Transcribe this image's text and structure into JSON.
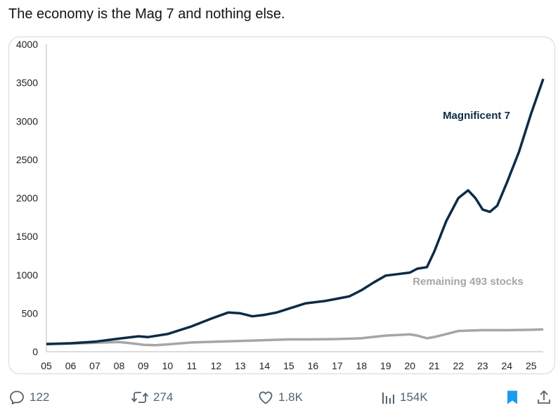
{
  "tweet": {
    "text": "The economy is the Mag 7 and nothing else."
  },
  "actions": {
    "reply_count": "122",
    "repost_count": "274",
    "like_count": "1.8K",
    "view_count": "154K"
  },
  "colors": {
    "mag7": "#0d2b45",
    "remaining": "#a6a6a6",
    "bookmark": "#1d9bf0",
    "icon": "#536471"
  },
  "chart_data": {
    "type": "line",
    "title": "",
    "xlabel": "",
    "ylabel": "",
    "ylim": [
      0,
      4000
    ],
    "xlim": [
      2005,
      2025.5
    ],
    "y_ticks": [
      "0",
      "500",
      "1000",
      "1500",
      "2000",
      "2500",
      "3000",
      "3500",
      "4000"
    ],
    "x_ticks": [
      "05",
      "06",
      "07",
      "08",
      "09",
      "10",
      "11",
      "12",
      "13",
      "14",
      "15",
      "16",
      "17",
      "18",
      "19",
      "20",
      "21",
      "22",
      "23",
      "24",
      "25"
    ],
    "series": [
      {
        "name": "Magnificent 7",
        "x": [
          2005,
          2006,
          2007,
          2008,
          2008.8,
          2009.2,
          2010,
          2011,
          2011.8,
          2012.5,
          2013,
          2013.5,
          2014,
          2014.5,
          2015,
          2015.7,
          2016.5,
          2017,
          2017.5,
          2018,
          2018.5,
          2019,
          2019.5,
          2020,
          2020.3,
          2020.7,
          2021,
          2021.5,
          2022,
          2022.4,
          2022.7,
          2023,
          2023.3,
          2023.6,
          2024,
          2024.5,
          2025,
          2025.5
        ],
        "values": [
          100,
          110,
          130,
          170,
          200,
          190,
          230,
          330,
          430,
          510,
          500,
          460,
          480,
          510,
          560,
          630,
          660,
          690,
          720,
          800,
          900,
          990,
          1010,
          1030,
          1080,
          1100,
          1300,
          1700,
          2000,
          2100,
          2000,
          1850,
          1820,
          1900,
          2200,
          2600,
          3100,
          3550
        ]
      },
      {
        "name": "Remaining 493 stocks",
        "x": [
          2005,
          2006,
          2007,
          2008,
          2008.5,
          2009,
          2009.5,
          2010,
          2011,
          2012,
          2013,
          2014,
          2015,
          2016,
          2017,
          2018,
          2019,
          2020,
          2020.3,
          2020.7,
          2021,
          2021.5,
          2022,
          2023,
          2024,
          2025,
          2025.5
        ],
        "values": [
          100,
          105,
          115,
          125,
          110,
          90,
          85,
          95,
          120,
          130,
          140,
          150,
          160,
          160,
          165,
          175,
          210,
          225,
          210,
          175,
          190,
          230,
          270,
          280,
          280,
          285,
          290
        ]
      }
    ],
    "annotations": [
      "Magnificent 7",
      "Remaining 493 stocks"
    ]
  }
}
